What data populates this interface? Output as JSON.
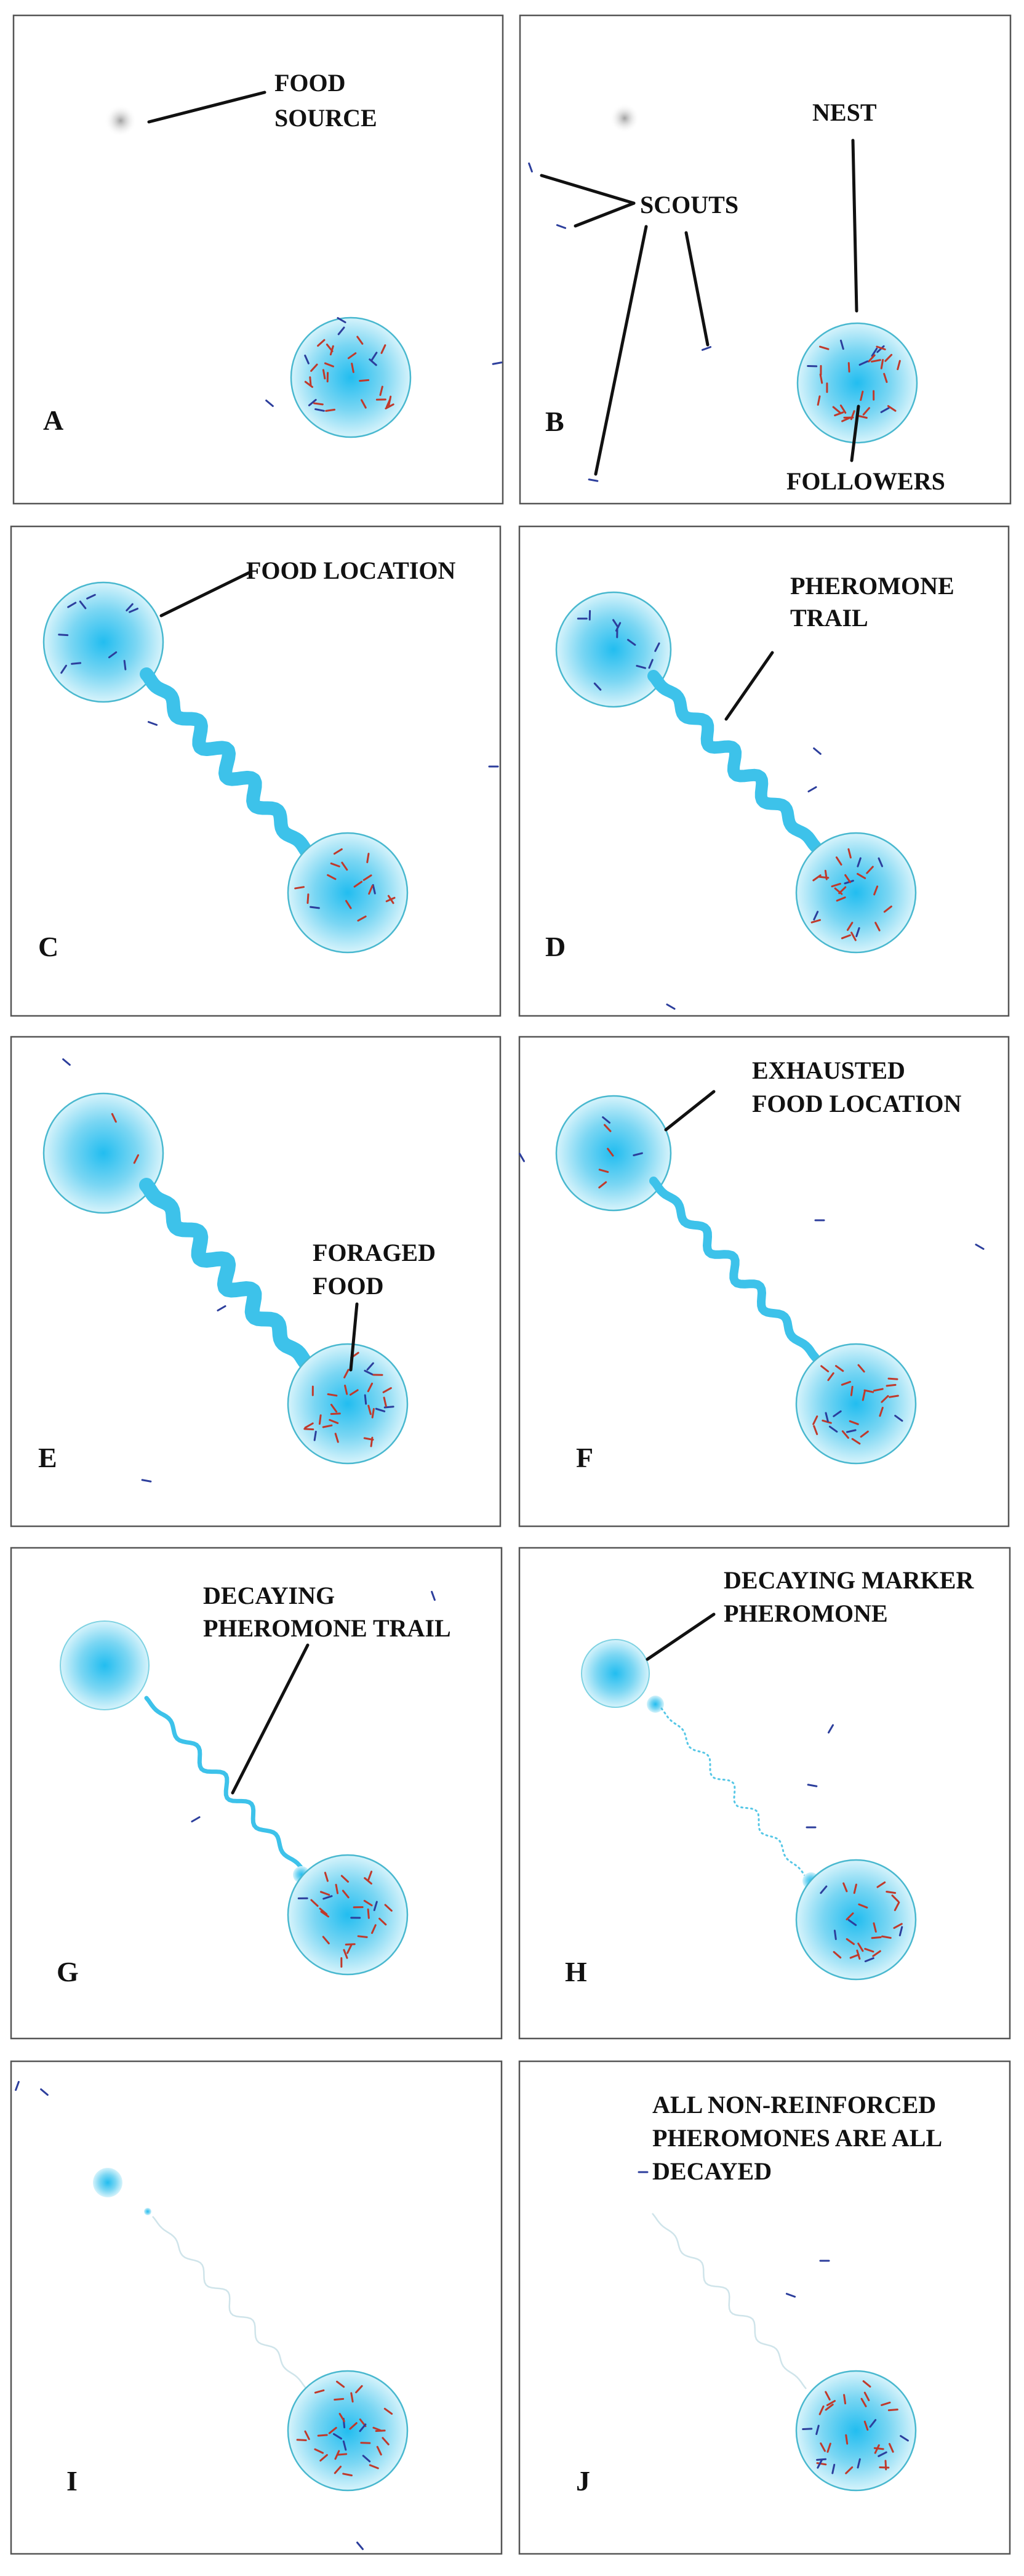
{
  "figure": {
    "colors": {
      "pheromone_blue": "#2fbfec",
      "nest_edge": "#49b8cf",
      "follower_ant": "#c0392b",
      "scout_ant": "#2c3e9c",
      "frame": "#555555",
      "text": "#111111"
    }
  },
  "panels": [
    {
      "label": "A",
      "callouts": [
        "FOOD",
        "SOURCE"
      ]
    },
    {
      "label": "B",
      "callouts": [
        "NEST",
        "SCOUTS",
        "FOLLOWERS"
      ]
    },
    {
      "label": "C",
      "callouts": [
        "FOOD LOCATION"
      ]
    },
    {
      "label": "D",
      "callouts": [
        "PHEROMONE",
        "TRAIL"
      ]
    },
    {
      "label": "E",
      "callouts": [
        "FORAGED",
        "FOOD"
      ]
    },
    {
      "label": "F",
      "callouts": [
        "EXHAUSTED",
        "FOOD LOCATION"
      ]
    },
    {
      "label": "G",
      "callouts": [
        "DECAYING",
        "PHEROMONE TRAIL"
      ]
    },
    {
      "label": "H",
      "callouts": [
        "DECAYING MARKER",
        "PHEROMONE"
      ]
    },
    {
      "label": "I",
      "callouts": []
    },
    {
      "label": "J",
      "callouts": [
        "ALL NON-REINFORCED",
        "PHEROMONES ARE ALL",
        "DECAYED"
      ]
    }
  ]
}
